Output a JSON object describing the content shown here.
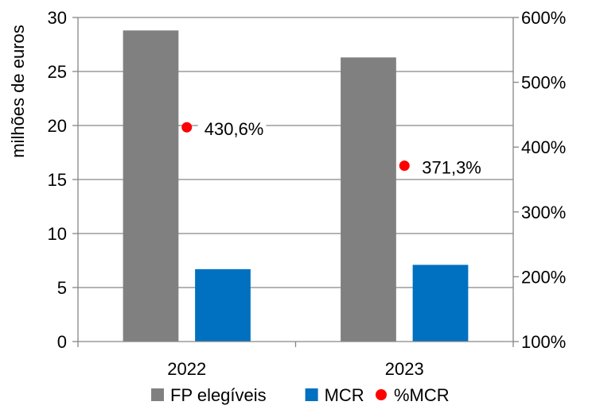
{
  "chart_data": {
    "type": "bar",
    "categories": [
      "2022",
      "2023"
    ],
    "ylabel": "milhões de euros",
    "ylim": [
      0,
      30
    ],
    "yticks": [
      "0",
      "5",
      "10",
      "15",
      "20",
      "25",
      "30"
    ],
    "y2lim": [
      100,
      600
    ],
    "y2ticks": [
      "100%",
      "200%",
      "300%",
      "400%",
      "500%",
      "600%"
    ],
    "grid": true,
    "legend_position": "bottom",
    "series": [
      {
        "name": "FP elegíveis",
        "color": "#808080",
        "values": [
          28.8,
          26.3
        ],
        "axis": "left",
        "kind": "bar"
      },
      {
        "name": "MCR",
        "color": "#0070C0",
        "values": [
          6.7,
          7.1
        ],
        "axis": "left",
        "kind": "bar"
      },
      {
        "name": "%MCR",
        "color": "#FF0000",
        "values": [
          430.6,
          371.3
        ],
        "axis": "right",
        "kind": "point",
        "labels": [
          "430,6%",
          "371,3%"
        ]
      }
    ]
  }
}
